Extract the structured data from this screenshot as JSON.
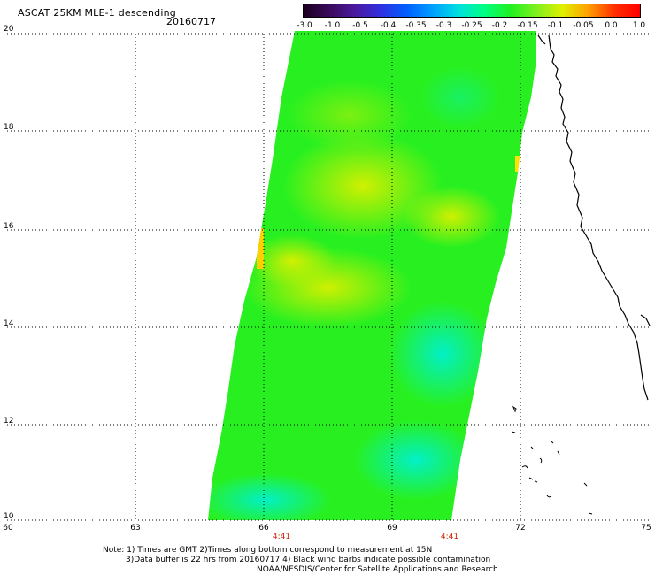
{
  "title": "ASCAT 25KM MLE-1 descending",
  "date": "20160717",
  "colorbar": {
    "labels": [
      "-3.0",
      "-1.0",
      "-0.5",
      "-0.4",
      "-0.35",
      "-0.3",
      "-0.25",
      "-0.2",
      "-0.15",
      "-0.1",
      "-0.05",
      "0.0",
      "1.0"
    ],
    "colors": [
      "#1a0020",
      "#3a0a5a",
      "#4a1aa0",
      "#3030e0",
      "#0060ff",
      "#00a0ff",
      "#00e0e0",
      "#00ff80",
      "#20f020",
      "#80f020",
      "#e0f000",
      "#ffa000",
      "#ff3000",
      "#ff0000"
    ]
  },
  "axes": {
    "y_labels": [
      "20",
      "18",
      "16",
      "14",
      "12",
      "10"
    ],
    "x_labels": [
      "60",
      "63",
      "66",
      "69",
      "72",
      "75"
    ],
    "x_range": [
      60,
      75
    ],
    "y_range": [
      10,
      20
    ],
    "grid": true,
    "grid_style": "dotted"
  },
  "pass_times": [
    "4:41",
    "4:41"
  ],
  "notes": {
    "line1": "Note: 1) Times are GMT 2)Times along bottom correspond to measurement at 15N",
    "line2": "3)Data buffer is 22 hrs from 20160717 4) Black wind barbs indicate possible contamination",
    "line3": "NOAA/NESDIS/Center for Satellite Applications and Research"
  },
  "swath": {
    "dominant_color": "#20f020",
    "high_region_color": "#c8f000",
    "low_region_color": "#00f0c0",
    "edge_highlight_color": "#ffd000"
  }
}
